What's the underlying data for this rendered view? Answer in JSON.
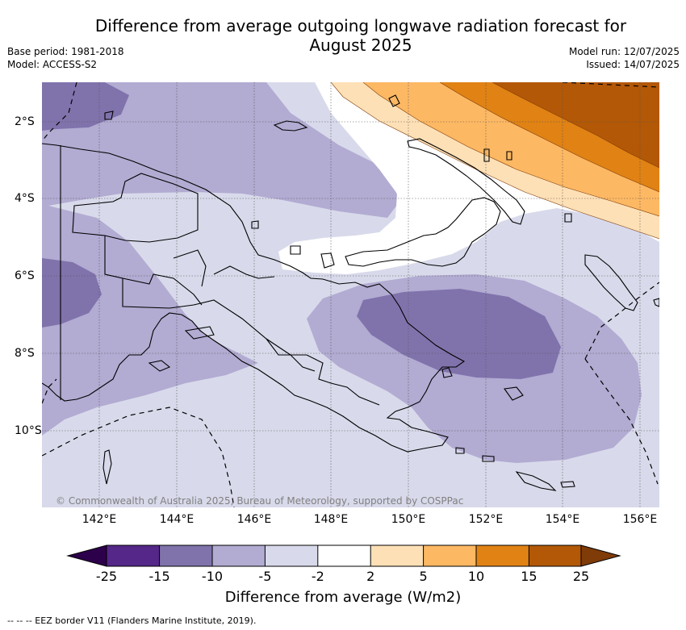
{
  "header": {
    "title_line1": "Difference from average outgoing longwave radiation forecast for",
    "title_line2": "August 2025",
    "base_period": "Base period: 1981-2018",
    "model": "Model: ACCESS-S2",
    "model_run": "Model run: 12/07/2025",
    "issued": "Issued: 14/07/2025"
  },
  "map": {
    "region": "Papua New Guinea",
    "lon_ticks": [
      "142°E",
      "144°E",
      "146°E",
      "148°E",
      "150°E",
      "152°E",
      "154°E",
      "156°E"
    ],
    "lat_ticks": [
      "2°S",
      "4°S",
      "6°S",
      "8°S",
      "10°S"
    ],
    "copyright": "© Commonwealth of Australia 2025, Bureau of Meteorology, supported by COSPPac"
  },
  "colorbar": {
    "tick_labels": [
      "-25",
      "-15",
      "-10",
      "-5",
      "-2",
      "2",
      "5",
      "10",
      "15",
      "25"
    ],
    "colors": {
      "below_-25": "#2d004b",
      "-25_-15": "#542788",
      "-15_-10": "#8073ac",
      "-10_-5": "#b2abd2",
      "-5_-2": "#d8daeb",
      "-2_2": "#ffffff",
      "2_5": "#fee0b6",
      "5_10": "#fdb863",
      "10_15": "#e08214",
      "15_25": "#b35806",
      "above_25": "#7f3b08"
    },
    "label": "Difference from average (W/m2)"
  },
  "footnote": "--  --  -- EEZ border V11 (Flanders Marine Institute, 2019)."
}
